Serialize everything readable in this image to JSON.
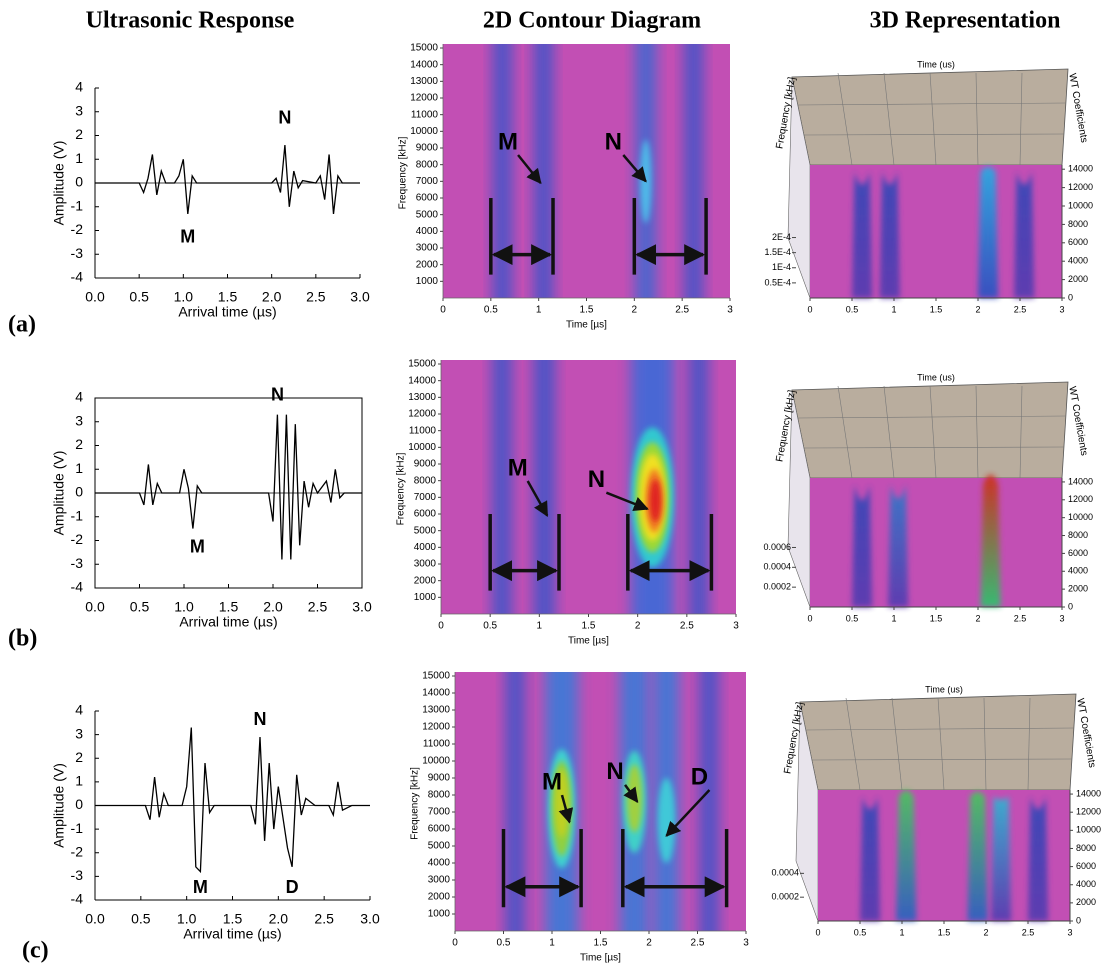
{
  "column_headers": [
    "Ultrasonic Response",
    "2D Contour Diagram",
    "3D Representation"
  ],
  "row_labels": [
    "(a)",
    "(b)",
    "(c)"
  ],
  "chart_data": [
    {
      "type": "line",
      "xlabel": "Arrival time (µs)",
      "ylabel": "Amplitude (V)",
      "frame": false,
      "color": "#000000",
      "xlim": [
        0,
        3
      ],
      "ylim": [
        -4,
        4
      ],
      "xticks": [
        {
          "value": 0,
          "label": "0.0"
        },
        0.5,
        {
          "value": 1,
          "label": "1.0"
        },
        1.5,
        {
          "value": 2,
          "label": "2.0"
        },
        2.5,
        {
          "value": 3,
          "label": "3.0"
        }
      ],
      "yticks": [
        -4,
        -3,
        -2,
        -1,
        0,
        1,
        2,
        3,
        4
      ],
      "annotations": [
        "N",
        "M"
      ],
      "x": [
        0,
        0.5,
        0.55,
        0.6,
        0.65,
        0.7,
        0.75,
        0.8,
        0.9,
        0.95,
        1.0,
        1.05,
        1.1,
        1.15,
        2.0,
        2.05,
        2.1,
        2.15,
        2.2,
        2.25,
        2.3,
        2.35,
        2.5,
        2.55,
        2.6,
        2.65,
        2.7,
        2.75,
        2.8,
        3.0
      ],
      "values": [
        0,
        0,
        -0.4,
        0.2,
        1.2,
        -0.5,
        0.5,
        0,
        0,
        0.3,
        1.0,
        -1.3,
        0.3,
        0,
        0,
        0.2,
        -0.4,
        1.6,
        -1.0,
        0.5,
        -0.2,
        0.1,
        0,
        0.3,
        -0.7,
        1.2,
        -1.3,
        0.3,
        0,
        0
      ]
    },
    {
      "type": "contour",
      "xlabel": "Time [µs]",
      "ylabel": "Frequency [kHz]",
      "xlim": [
        0,
        3
      ],
      "ylim": [
        0,
        15000
      ],
      "xticks": [
        0,
        0.5,
        1,
        1.5,
        2,
        2.5,
        3
      ],
      "yticks": [
        1000,
        2000,
        3000,
        4000,
        5000,
        6000,
        7000,
        8000,
        9000,
        10000,
        11000,
        12000,
        13000,
        14000,
        15000
      ],
      "annotations": [
        "M",
        "N"
      ]
    },
    {
      "type": "surface",
      "xlabel": "Time (us)",
      "ylabel": "Frequency [kHz]",
      "zlabel": "WT Coefficients",
      "xlim": [
        0,
        3
      ],
      "xticks": [
        0,
        0.5,
        1,
        1.5,
        2,
        2.5,
        3
      ],
      "ylim": [
        0,
        15000
      ],
      "yticks": [
        0,
        2000,
        4000,
        6000,
        8000,
        10000,
        12000,
        14000
      ],
      "zlim": [
        0,
        0.00044
      ],
      "zticks": [
        {
          "value": 0.0002,
          "label": "2E-4"
        },
        {
          "value": 0.00015,
          "label": "1.5E-4"
        },
        {
          "value": 0.0001,
          "label": "1E-4"
        },
        {
          "value": 5e-05,
          "label": "0.5E-4"
        }
      ]
    },
    {
      "type": "line",
      "xlabel": "Arrival time (µs)",
      "ylabel": "Amplitude (V)",
      "frame": true,
      "color": "#000000",
      "xlim": [
        0,
        3
      ],
      "ylim": [
        -4,
        4
      ],
      "xticks": [
        {
          "value": 0,
          "label": "0.0"
        },
        0.5,
        {
          "value": 1,
          "label": "1.0"
        },
        1.5,
        {
          "value": 2,
          "label": "2.0"
        },
        2.5,
        {
          "value": 3,
          "label": "3.0"
        }
      ],
      "yticks": [
        -4,
        -3,
        -2,
        -1,
        0,
        1,
        2,
        3,
        4
      ],
      "annotations": [
        "N",
        "M"
      ],
      "x": [
        0,
        0.5,
        0.55,
        0.6,
        0.65,
        0.7,
        0.75,
        0.95,
        1.0,
        1.05,
        1.1,
        1.15,
        1.2,
        1.95,
        2.0,
        2.05,
        2.1,
        2.15,
        2.2,
        2.25,
        2.3,
        2.35,
        2.4,
        2.45,
        2.5,
        2.6,
        2.65,
        2.7,
        2.75,
        2.8,
        3.0
      ],
      "values": [
        0,
        0,
        -0.5,
        1.2,
        -0.5,
        0.4,
        0,
        0,
        1.0,
        0.2,
        -1.5,
        0.3,
        0,
        0,
        -1.2,
        3.3,
        -2.8,
        3.3,
        -2.8,
        2.9,
        -2.2,
        0.5,
        -0.6,
        0.4,
        0,
        0.5,
        -0.4,
        1.0,
        -0.2,
        0,
        0
      ]
    },
    {
      "type": "contour",
      "xlabel": "Time [µs]",
      "ylabel": "Frequency [kHz]",
      "xlim": [
        0,
        3
      ],
      "ylim": [
        0,
        15000
      ],
      "xticks": [
        0,
        0.5,
        1,
        1.5,
        2,
        2.5,
        3
      ],
      "yticks": [
        1000,
        2000,
        3000,
        4000,
        5000,
        6000,
        7000,
        8000,
        9000,
        10000,
        11000,
        12000,
        13000,
        14000,
        15000
      ],
      "annotations": [
        "M",
        "N"
      ]
    },
    {
      "type": "surface",
      "xlabel": "Time (us)",
      "ylabel": "Frequency [kHz]",
      "zlabel": "WT Coefficients",
      "xlim": [
        0,
        3
      ],
      "xticks": [
        0,
        0.5,
        1,
        1.5,
        2,
        2.5,
        3
      ],
      "ylim": [
        0,
        15000
      ],
      "yticks": [
        0,
        2000,
        4000,
        6000,
        8000,
        10000,
        12000,
        14000
      ],
      "zlim": [
        0,
        0.0013
      ],
      "zticks": [
        0.0006,
        0.0004,
        0.0002
      ]
    },
    {
      "type": "line",
      "xlabel": "Arrival time (µs)",
      "ylabel": "Amplitude (V)",
      "frame": false,
      "color": "#000000",
      "xlim": [
        0,
        3
      ],
      "ylim": [
        -4,
        4
      ],
      "xticks": [
        {
          "value": 0,
          "label": "0.0"
        },
        0.5,
        {
          "value": 1,
          "label": "1.0"
        },
        1.5,
        {
          "value": 2,
          "label": "2.0"
        },
        2.5,
        {
          "value": 3,
          "label": "3.0"
        }
      ],
      "yticks": [
        -4,
        -3,
        -2,
        -1,
        0,
        1,
        2,
        3,
        4
      ],
      "annotations": [
        "N",
        "M",
        "D"
      ],
      "x": [
        0,
        0.55,
        0.6,
        0.65,
        0.7,
        0.75,
        0.8,
        0.95,
        1.0,
        1.05,
        1.1,
        1.15,
        1.2,
        1.25,
        1.3,
        1.7,
        1.75,
        1.8,
        1.85,
        1.9,
        1.95,
        2.0,
        2.05,
        2.1,
        2.15,
        2.2,
        2.25,
        2.3,
        2.4,
        2.55,
        2.6,
        2.65,
        2.7,
        2.8,
        3.0
      ],
      "values": [
        0,
        0,
        -0.6,
        1.2,
        -0.5,
        0.5,
        0,
        0,
        0.8,
        3.3,
        -2.6,
        -2.8,
        1.8,
        -0.3,
        0,
        0,
        -0.8,
        2.9,
        -1.5,
        1.8,
        -1.0,
        0.8,
        -0.5,
        -1.8,
        -2.6,
        1.3,
        -0.4,
        0.3,
        0,
        0,
        -0.4,
        1.0,
        -0.2,
        0,
        0
      ]
    },
    {
      "type": "contour",
      "xlabel": "Time [µs]",
      "ylabel": "Frequency [kHz]",
      "xlim": [
        0,
        3
      ],
      "ylim": [
        0,
        15000
      ],
      "xticks": [
        0,
        0.5,
        1,
        1.5,
        2,
        2.5,
        3
      ],
      "yticks": [
        1000,
        2000,
        3000,
        4000,
        5000,
        6000,
        7000,
        8000,
        9000,
        10000,
        11000,
        12000,
        13000,
        14000,
        15000
      ],
      "annotations": [
        "M",
        "N",
        "D"
      ]
    },
    {
      "type": "surface",
      "xlabel": "Time (us)",
      "ylabel": "Frequency [kHz]",
      "zlabel": "WT Coefficients",
      "xlim": [
        0,
        3
      ],
      "xticks": [
        0,
        0.5,
        1,
        1.5,
        2,
        2.5,
        3
      ],
      "ylim": [
        0,
        15000
      ],
      "yticks": [
        0,
        2000,
        4000,
        6000,
        8000,
        10000,
        12000,
        14000
      ],
      "zlim": [
        0,
        0.0011
      ],
      "zticks": [
        0.0004,
        0.0002
      ]
    }
  ]
}
